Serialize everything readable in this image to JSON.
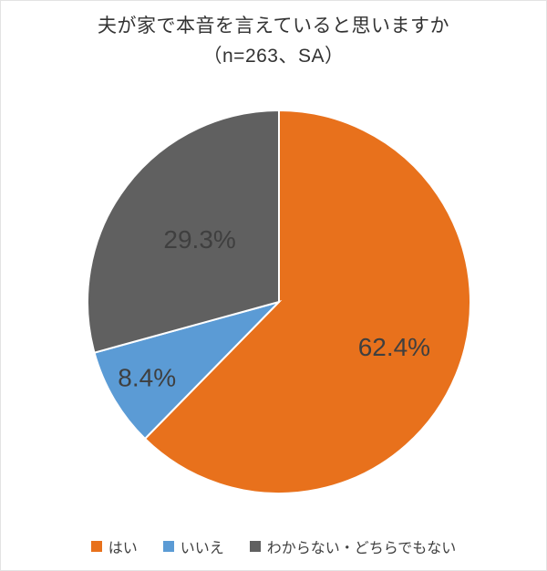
{
  "header": {
    "title": "夫が家で本音を言えていると思いますか",
    "subtitle": "（n=263、SA）"
  },
  "chart_data": {
    "type": "pie",
    "title": "夫が家で本音を言えていると思いますか",
    "subtitle": "（n=263、SA）",
    "categories": [
      "はい",
      "いいえ",
      "わからない・どちらでもない"
    ],
    "values": [
      62.4,
      8.4,
      29.3
    ],
    "labels": [
      "62.4%",
      "8.4%",
      "29.3%"
    ],
    "unit": "%",
    "colors": [
      "#E8711C",
      "#5B9BD5",
      "#606060"
    ],
    "label_color": "#3f3f3f",
    "start_angle_deg": 0,
    "direction": "clockwise",
    "legend_position": "bottom",
    "legend": [
      "はい",
      "いいえ",
      "わからない・どちらでもない"
    ]
  }
}
